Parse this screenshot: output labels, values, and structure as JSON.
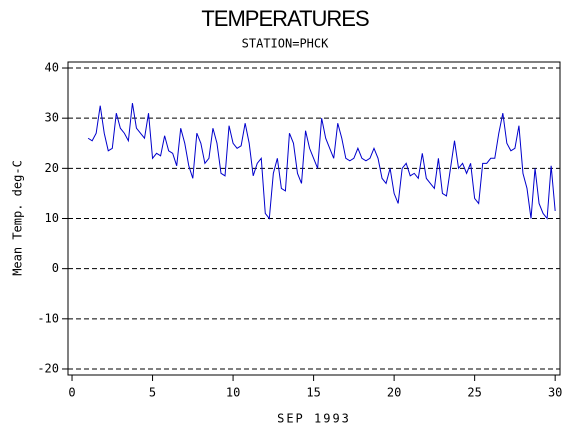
{
  "chart_data": {
    "type": "line",
    "title": "TEMPERATURES",
    "subtitle": "STATION=PHCK",
    "x_label": "SEP 1993",
    "y_label": "Mean Temp. deg-C",
    "xlim": [
      -0.25,
      30.3
    ],
    "xticks": [
      0,
      5,
      10,
      15,
      20,
      25,
      30
    ],
    "ylim": [
      -21.2,
      41.2
    ],
    "yticks": [
      -20,
      -10,
      0,
      10,
      20,
      30,
      40
    ],
    "grid": true,
    "series": [
      {
        "color": "#0000cc",
        "x": [
          1,
          1.25,
          1.5,
          1.75,
          2,
          2.25,
          2.5,
          2.75,
          3,
          3.25,
          3.5,
          3.75,
          4,
          4.25,
          4.5,
          4.75,
          5,
          5.25,
          5.5,
          5.75,
          6,
          6.25,
          6.5,
          6.75,
          7,
          7.25,
          7.5,
          7.75,
          8,
          8.25,
          8.5,
          8.75,
          9,
          9.25,
          9.5,
          9.75,
          10,
          10.25,
          10.5,
          10.75,
          11,
          11.25,
          11.5,
          11.75,
          12,
          12.25,
          12.5,
          12.75,
          13,
          13.25,
          13.5,
          13.75,
          14,
          14.25,
          14.5,
          14.75,
          15,
          15.25,
          15.5,
          15.75,
          16,
          16.25,
          16.5,
          16.75,
          17,
          17.25,
          17.5,
          17.75,
          18,
          18.25,
          18.5,
          18.75,
          19,
          19.25,
          19.5,
          19.75,
          20,
          20.25,
          20.5,
          20.75,
          21,
          21.25,
          21.5,
          21.75,
          22,
          22.25,
          22.5,
          22.75,
          23,
          23.25,
          23.5,
          23.75,
          24,
          24.25,
          24.5,
          24.75,
          25,
          25.25,
          25.5,
          25.75,
          26,
          26.25,
          26.5,
          26.75,
          27,
          27.25,
          27.5,
          27.75,
          28,
          28.25,
          28.5,
          28.75,
          29,
          29.25,
          29.5,
          29.75,
          30
        ],
        "values": [
          26,
          25.5,
          27,
          32.5,
          27,
          23.5,
          24,
          31,
          28,
          27,
          25.5,
          33,
          28,
          27,
          26,
          31,
          22,
          23,
          22.5,
          26.5,
          23.5,
          23,
          20.5,
          28,
          25,
          20.5,
          18,
          27,
          25,
          21,
          22,
          28,
          25,
          19,
          18.5,
          28.5,
          25,
          24,
          24.5,
          29,
          25,
          18.5,
          21,
          22,
          11,
          10,
          19,
          22,
          16,
          15.5,
          27,
          25,
          19,
          17,
          27.5,
          24,
          22,
          20,
          30,
          26,
          24,
          22,
          29,
          26,
          22,
          21.5,
          22,
          24,
          22,
          21.5,
          22,
          24,
          22,
          18,
          17,
          20,
          15,
          13,
          20,
          21,
          18.5,
          19,
          18,
          23,
          18,
          17,
          16,
          22,
          15,
          14.5,
          20,
          25.5,
          20,
          21,
          19,
          21,
          14,
          13,
          21,
          21,
          22,
          22,
          27,
          31,
          25,
          23.5,
          24,
          28.5,
          19,
          16,
          10,
          20,
          13,
          11,
          10,
          20.5,
          11.5
        ]
      }
    ]
  }
}
